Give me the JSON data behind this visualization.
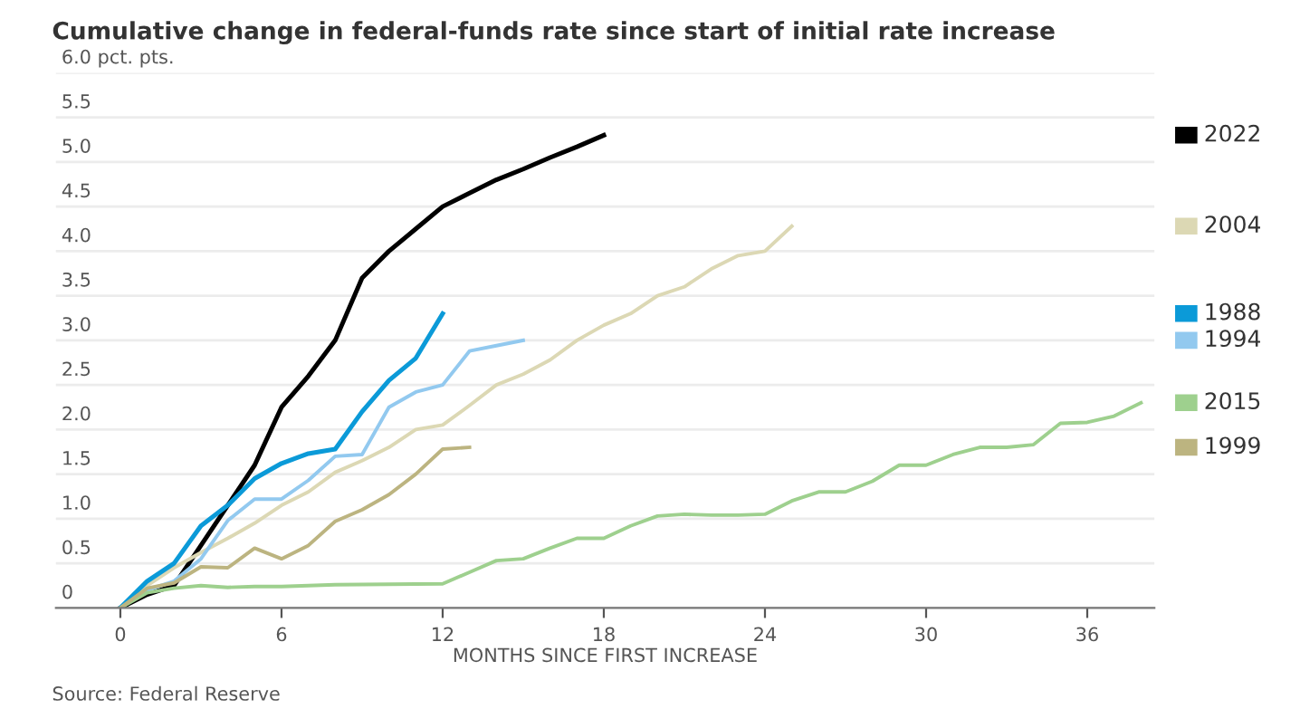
{
  "chart_data": {
    "type": "line",
    "title": "Cumulative change in federal-funds rate since start of initial rate increase",
    "xlabel": "MONTHS SINCE FIRST INCREASE",
    "annotations": [
      "Source: Federal Reserve"
    ],
    "xlim": [
      -2.4,
      38.5
    ],
    "xticks": [
      0,
      6,
      12,
      18,
      24,
      30,
      36
    ],
    "ylim": [
      0,
      6.0
    ],
    "yticks": [
      {
        "value": 0,
        "label": "0"
      },
      {
        "value": 0.5,
        "label": "0.5"
      },
      {
        "value": 1.0,
        "label": "1.0"
      },
      {
        "value": 1.5,
        "label": "1.5"
      },
      {
        "value": 2.0,
        "label": "2.0"
      },
      {
        "value": 2.5,
        "label": "2.5"
      },
      {
        "value": 3.0,
        "label": "3.0"
      },
      {
        "value": 3.5,
        "label": "3.5"
      },
      {
        "value": 4.0,
        "label": "4.0"
      },
      {
        "value": 4.5,
        "label": "4.5"
      },
      {
        "value": 5.0,
        "label": "5.0"
      },
      {
        "value": 5.5,
        "label": "5.5"
      },
      {
        "value": 6.0,
        "label": "6.0 pct. pts."
      }
    ],
    "grid": "y",
    "legend": "right",
    "marker": "none",
    "line_style": "solid",
    "series": [
      {
        "name": "2022",
        "color": "#000000",
        "x": [
          0,
          1,
          2,
          3,
          4,
          5,
          6,
          7,
          8,
          9,
          10,
          11,
          12,
          13,
          14,
          15,
          16,
          17,
          18
        ],
        "values": [
          0,
          0.15,
          0.25,
          0.7,
          1.15,
          1.6,
          2.25,
          2.6,
          3.0,
          3.7,
          4.0,
          4.25,
          4.5,
          4.65,
          4.8,
          4.92,
          5.05,
          5.17,
          5.3
        ]
      },
      {
        "name": "2004",
        "color": "#dcd8b4",
        "x": [
          0,
          1,
          2,
          3,
          4,
          5,
          6,
          7,
          8,
          9,
          10,
          11,
          12,
          13,
          14,
          15,
          16,
          17,
          18,
          19,
          20,
          21,
          22,
          23,
          24,
          25
        ],
        "values": [
          0,
          0.25,
          0.45,
          0.62,
          0.78,
          0.95,
          1.15,
          1.3,
          1.52,
          1.65,
          1.8,
          2.0,
          2.05,
          2.27,
          2.5,
          2.62,
          2.78,
          3.0,
          3.17,
          3.3,
          3.5,
          3.6,
          3.8,
          3.95,
          4.0,
          4.28
        ]
      },
      {
        "name": "1988",
        "color": "#0b9ad8",
        "x": [
          0,
          1,
          2,
          3,
          4,
          5,
          6,
          7,
          8,
          9,
          10,
          11,
          12
        ],
        "values": [
          0,
          0.3,
          0.5,
          0.92,
          1.15,
          1.45,
          1.62,
          1.73,
          1.78,
          2.2,
          2.55,
          2.8,
          3.3
        ]
      },
      {
        "name": "1994",
        "color": "#92c9ef",
        "x": [
          0,
          1,
          2,
          3,
          4,
          5,
          6,
          7,
          8,
          9,
          10,
          11,
          12,
          13,
          14,
          15
        ],
        "values": [
          0,
          0.2,
          0.3,
          0.55,
          0.98,
          1.22,
          1.22,
          1.43,
          1.7,
          1.72,
          2.25,
          2.42,
          2.5,
          2.88,
          2.94,
          3.0
        ]
      },
      {
        "name": "2015",
        "color": "#9ed08e",
        "x": [
          0,
          1,
          2,
          3,
          4,
          5,
          6,
          8,
          12,
          13,
          14,
          15,
          16,
          17,
          18,
          19,
          20,
          21,
          22,
          23,
          24,
          25,
          26,
          27,
          28,
          29,
          30,
          31,
          32,
          33,
          34,
          35,
          36,
          37,
          38
        ],
        "values": [
          0,
          0.17,
          0.22,
          0.25,
          0.23,
          0.24,
          0.24,
          0.26,
          0.27,
          0.4,
          0.53,
          0.55,
          0.67,
          0.78,
          0.78,
          0.92,
          1.03,
          1.05,
          1.04,
          1.04,
          1.05,
          1.2,
          1.3,
          1.3,
          1.42,
          1.6,
          1.6,
          1.72,
          1.8,
          1.8,
          1.83,
          2.07,
          2.08,
          2.15,
          2.3
        ]
      },
      {
        "name": "1999",
        "color": "#bcb480",
        "x": [
          0,
          1,
          2,
          3,
          4,
          5,
          6,
          7,
          8,
          9,
          10,
          11,
          12,
          13
        ],
        "values": [
          0,
          0.22,
          0.28,
          0.46,
          0.45,
          0.67,
          0.55,
          0.7,
          0.97,
          1.1,
          1.27,
          1.5,
          1.78,
          1.8
        ]
      }
    ]
  }
}
